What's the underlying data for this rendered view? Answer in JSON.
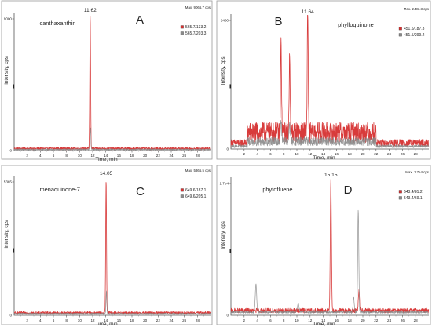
{
  "chart_data": [
    {
      "type": "line",
      "panel_letter": "A",
      "compound_label": "canthaxanthin",
      "peak_label": "11.62",
      "max_label": "Max. 9066.7 cps",
      "ylabel": "Intensity, cps",
      "xlabel": "Time, min",
      "xlim": [
        0,
        30
      ],
      "ylim": [
        0,
        9000
      ],
      "x_ticks": [
        "2",
        "4",
        "6",
        "8",
        "10",
        "12",
        "14",
        "16",
        "18",
        "20",
        "22",
        "24",
        "26",
        "28"
      ],
      "y_ticks": [
        {
          "value": 9000,
          "label": "9000"
        }
      ],
      "legend": [
        "565.7/133.2",
        "565.7/203.3"
      ],
      "legend_colors": [
        "#d63030",
        "#8a8a8a"
      ],
      "series": [
        {
          "name": "565.7/133.2",
          "color": "#d63030",
          "baseline": 60,
          "noise": 160,
          "peaks": [
            {
              "x": 11.62,
              "h": 9066,
              "w": 0.09
            }
          ]
        },
        {
          "name": "565.7/203.3",
          "color": "#8a8a8a",
          "baseline": 40,
          "noise": 80,
          "peaks": [
            {
              "x": 11.66,
              "h": 1500,
              "w": 0.09
            }
          ]
        }
      ]
    },
    {
      "type": "line",
      "panel_letter": "B",
      "compound_label": "phylloquinone",
      "peak_label": "11.64",
      "max_label": "Max. 2433.3 cps",
      "ylabel": "Intensity, cps",
      "xlabel": "Time, min",
      "xlim": [
        0,
        30
      ],
      "ylim": [
        0,
        2400
      ],
      "x_ticks": [
        "2",
        "4",
        "6",
        "8",
        "10",
        "12",
        "14",
        "16",
        "18",
        "20",
        "22",
        "24",
        "26",
        "28"
      ],
      "y_ticks": [
        {
          "value": 2400,
          "label": "2400"
        }
      ],
      "legend": [
        "451.5/187.3",
        "451.5/299.2"
      ],
      "legend_colors": [
        "#d63030",
        "#8a8a8a"
      ],
      "series": [
        {
          "name": "451.5/187.3",
          "color": "#d63030",
          "baseline": 120,
          "noise": 380,
          "peaks": [
            {
              "x": 7.6,
              "h": 1700,
              "w": 0.1
            },
            {
              "x": 8.9,
              "h": 1550,
              "w": 0.1
            },
            {
              "x": 11.64,
              "h": 2433,
              "w": 0.1
            }
          ],
          "noise_range": [
            2.5,
            22
          ]
        },
        {
          "name": "451.5/299.2",
          "color": "#8a8a8a",
          "baseline": 60,
          "noise": 160,
          "peaks": [
            {
              "x": 7.6,
              "h": 400,
              "w": 0.12
            },
            {
              "x": 8.9,
              "h": 350,
              "w": 0.12
            }
          ],
          "noise_range": [
            2.5,
            22
          ]
        }
      ]
    },
    {
      "type": "line",
      "panel_letter": "C",
      "compound_label": "menaquinone-7",
      "peak_label": "14.05",
      "max_label": "Max. 5365.5 cps",
      "ylabel": "Intensity, cps",
      "xlabel": "Time, min",
      "xlim": [
        0,
        30
      ],
      "ylim": [
        0,
        5365
      ],
      "x_ticks": [
        "2",
        "4",
        "6",
        "8",
        "10",
        "12",
        "14",
        "16",
        "18",
        "20",
        "22",
        "24",
        "26",
        "28"
      ],
      "y_ticks": [
        {
          "value": 5365,
          "label": "5365"
        }
      ],
      "legend": [
        "649.6/187.1",
        "649.6/205.1"
      ],
      "legend_colors": [
        "#d63030",
        "#8a8a8a"
      ],
      "series": [
        {
          "name": "649.6/187.1",
          "color": "#d63030",
          "baseline": 40,
          "noise": 110,
          "peaks": [
            {
              "x": 14.05,
              "h": 5365,
              "w": 0.09
            }
          ]
        },
        {
          "name": "649.6/205.1",
          "color": "#8a8a8a",
          "baseline": 30,
          "noise": 60,
          "peaks": [
            {
              "x": 14.1,
              "h": 900,
              "w": 0.09
            }
          ]
        }
      ]
    },
    {
      "type": "line",
      "panel_letter": "D",
      "compound_label": "phytofluene",
      "peak_label": "15.15",
      "max_label": "Max. 1.7e4 cps",
      "ylabel": "Intensity, cps",
      "xlabel": "Time, min",
      "xlim": [
        0,
        30
      ],
      "ylim": [
        0,
        17000
      ],
      "x_ticks": [
        "2",
        "4",
        "6",
        "8",
        "10",
        "12",
        "14",
        "16",
        "18",
        "20",
        "22",
        "24",
        "26",
        "28"
      ],
      "y_ticks": [
        {
          "value": 17000,
          "label": "1.7e4"
        }
      ],
      "legend": [
        "543.4/81.2",
        "543.4/69.1"
      ],
      "legend_colors": [
        "#d63030",
        "#8a8a8a"
      ],
      "series": [
        {
          "name": "543.4/81.2",
          "color": "#d63030",
          "baseline": 300,
          "noise": 600,
          "peaks": [
            {
              "x": 15.15,
              "h": 17000,
              "w": 0.12
            },
            {
              "x": 19.4,
              "h": 2500,
              "w": 0.12
            }
          ]
        },
        {
          "name": "543.4/69.1",
          "color": "#8a8a8a",
          "baseline": 250,
          "noise": 300,
          "peaks": [
            {
              "x": 3.8,
              "h": 3600,
              "w": 0.15
            },
            {
              "x": 10.2,
              "h": 1000,
              "w": 0.2
            },
            {
              "x": 19.3,
              "h": 13200,
              "w": 0.12
            },
            {
              "x": 18.6,
              "h": 2000,
              "w": 0.12
            }
          ]
        }
      ]
    }
  ]
}
